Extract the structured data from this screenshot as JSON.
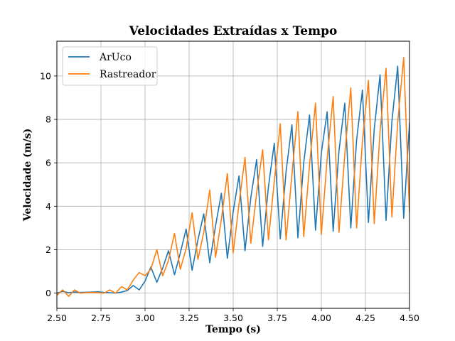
{
  "chart_data": {
    "type": "line",
    "title": "Velocidades Extraídas x Tempo",
    "xlabel": "Tempo (s)",
    "ylabel": "Velocidade (m/s)",
    "xlim": [
      2.5,
      4.5
    ],
    "ylim": [
      -0.7,
      11.6
    ],
    "xticks": [
      2.5,
      2.75,
      3.0,
      3.25,
      3.5,
      3.75,
      4.0,
      4.25,
      4.5
    ],
    "xtick_labels": [
      "2.50",
      "2.75",
      "3.00",
      "3.25",
      "3.50",
      "3.75",
      "4.00",
      "4.25",
      "4.50"
    ],
    "yticks": [
      0,
      2,
      4,
      6,
      8,
      10
    ],
    "ytick_labels": [
      "0",
      "2",
      "4",
      "6",
      "8",
      "10"
    ],
    "grid": true,
    "legend_position": "top-left",
    "series": [
      {
        "name": "ArUco",
        "color": "#1f77b4",
        "x": [
          2.5,
          2.533,
          2.567,
          2.6,
          2.633,
          2.667,
          2.7,
          2.733,
          2.767,
          2.8,
          2.833,
          2.867,
          2.9,
          2.933,
          2.967,
          3.0,
          3.033,
          3.067,
          3.1,
          3.133,
          3.167,
          3.2,
          3.233,
          3.267,
          3.3,
          3.333,
          3.367,
          3.4,
          3.433,
          3.467,
          3.5,
          3.533,
          3.567,
          3.6,
          3.633,
          3.667,
          3.7,
          3.733,
          3.767,
          3.8,
          3.833,
          3.867,
          3.9,
          3.933,
          3.967,
          4.0,
          4.033,
          4.067,
          4.1,
          4.133,
          4.167,
          4.2,
          4.233,
          4.267,
          4.3,
          4.333,
          4.367,
          4.4,
          4.433,
          4.467,
          4.5
        ],
        "values": [
          0.0,
          0.08,
          0.02,
          0.05,
          0.03,
          0.04,
          0.05,
          0.06,
          0.03,
          0.02,
          0.0,
          0.05,
          0.12,
          0.35,
          0.15,
          0.55,
          1.2,
          0.5,
          1.15,
          1.95,
          0.85,
          1.85,
          2.95,
          1.05,
          2.45,
          3.65,
          1.4,
          3.1,
          4.6,
          1.6,
          3.75,
          5.4,
          1.95,
          4.4,
          6.15,
          2.15,
          4.9,
          6.9,
          2.5,
          5.6,
          7.75,
          2.55,
          6.0,
          8.2,
          2.9,
          6.45,
          8.35,
          2.85,
          6.55,
          8.75,
          3.0,
          7.05,
          9.35,
          3.25,
          7.55,
          10.05,
          3.35,
          7.9,
          10.45,
          3.45,
          7.85
        ]
      },
      {
        "name": "Rastreador",
        "color": "#ff7f0e",
        "x": [
          2.5,
          2.533,
          2.567,
          2.6,
          2.633,
          2.667,
          2.7,
          2.733,
          2.767,
          2.8,
          2.833,
          2.867,
          2.9,
          2.933,
          2.967,
          3.0,
          3.033,
          3.067,
          3.1,
          3.133,
          3.167,
          3.2,
          3.233,
          3.267,
          3.3,
          3.333,
          3.367,
          3.4,
          3.433,
          3.467,
          3.5,
          3.533,
          3.567,
          3.6,
          3.633,
          3.667,
          3.7,
          3.733,
          3.767,
          3.8,
          3.833,
          3.867,
          3.9,
          3.933,
          3.967,
          4.0,
          4.033,
          4.067,
          4.1,
          4.133,
          4.167,
          4.2,
          4.233,
          4.267,
          4.3,
          4.333,
          4.367,
          4.4,
          4.433,
          4.467,
          4.5
        ],
        "values": [
          -0.1,
          0.15,
          -0.15,
          0.15,
          0.0,
          0.02,
          0.03,
          0.02,
          0.0,
          0.15,
          0.0,
          0.3,
          0.15,
          0.6,
          0.95,
          0.8,
          1.1,
          2.0,
          0.8,
          1.5,
          2.75,
          1.1,
          2.05,
          3.7,
          1.55,
          2.8,
          4.75,
          1.65,
          3.4,
          5.5,
          1.85,
          4.1,
          6.25,
          2.3,
          4.6,
          6.6,
          2.45,
          5.15,
          7.8,
          2.45,
          5.45,
          8.35,
          2.6,
          5.9,
          8.75,
          2.7,
          6.2,
          9.05,
          2.8,
          6.4,
          9.45,
          3.0,
          7.0,
          9.8,
          3.2,
          7.45,
          10.35,
          3.5,
          7.85,
          10.85,
          3.7
        ]
      }
    ]
  }
}
